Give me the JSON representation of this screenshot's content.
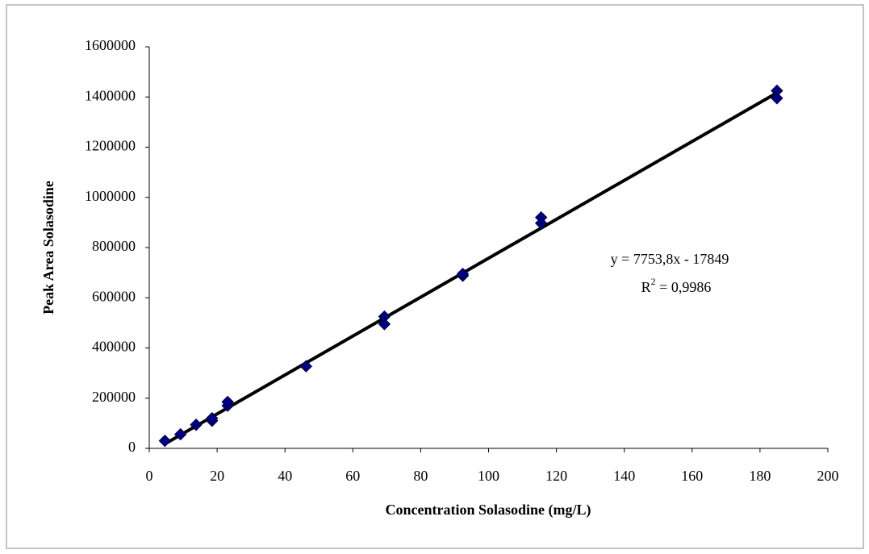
{
  "chart_data": {
    "type": "scatter",
    "x_label": "Concentration Solasodine (mg/L)",
    "y_label": "Peak Area Solasodine",
    "x": [
      4.6,
      9.2,
      13.8,
      18.5,
      18.5,
      23.1,
      23.1,
      46.2,
      69.3,
      69.3,
      92.4,
      92.4,
      115.5,
      115.5,
      185,
      185
    ],
    "values": [
      30000,
      56000,
      94000,
      110000,
      120000,
      170000,
      185000,
      327000,
      525000,
      495000,
      688000,
      695000,
      920000,
      897000,
      1425000,
      1395000
    ],
    "color": "#000080",
    "trendline": {
      "slope": 7753.8,
      "intercept": -17849,
      "color": "#000000"
    },
    "equation": "y = 7753,8x - 17849",
    "r2": {
      "base": "R",
      "sup": "2",
      "rest": " = 0,9986"
    },
    "xlim": [
      0,
      200
    ],
    "xticks": [
      0,
      20,
      40,
      60,
      80,
      100,
      120,
      140,
      160,
      180,
      200
    ],
    "ylim": [
      0,
      1600000
    ],
    "yticks": [
      0,
      200000,
      400000,
      600000,
      800000,
      1000000,
      1200000,
      1400000,
      1600000
    ],
    "grid": false
  }
}
